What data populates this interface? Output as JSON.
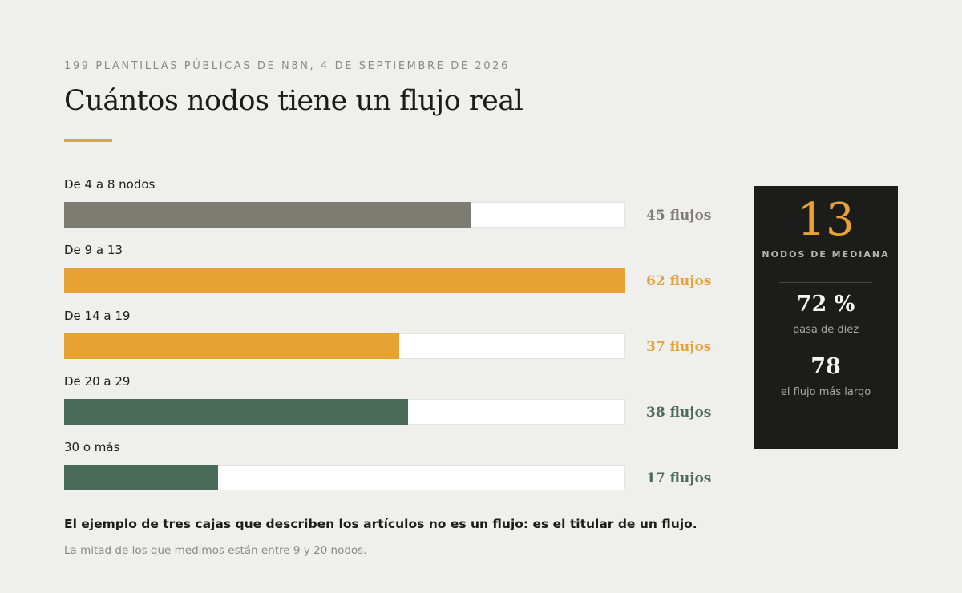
{
  "header": {
    "kicker": "199 PLANTILLAS PÚBLICAS DE N8N, 4 DE SEPTIEMBRE DE 2026",
    "title": "Cuántos nodos tiene un flujo real"
  },
  "chart_data": {
    "type": "bar",
    "orientation": "horizontal",
    "xlim": [
      0,
      62
    ],
    "categories": [
      "De 4 a 8 nodos",
      "De 9 a 13",
      "De 14 a 19",
      "De 20 a 29",
      "30 o más"
    ],
    "values": [
      45,
      62,
      37,
      38,
      17
    ],
    "value_labels": [
      "45 flujos",
      "62 flujos",
      "37 flujos",
      "38 flujos",
      "17 flujos"
    ],
    "colors": [
      "#7d7b72",
      "#e8a133",
      "#e8a133",
      "#4a6b5a",
      "#4a6b5a"
    ]
  },
  "stats_panel": {
    "median_value": "13",
    "median_label": "NODOS DE MEDIANA",
    "pct_value": "72 %",
    "pct_label": "pasa de diez",
    "longest_value": "78",
    "longest_label": "el flujo más largo"
  },
  "footer": {
    "note": "El ejemplo de tres cajas que describen los artículos no es un flujo: es el titular de un flujo.",
    "sub": "La mitad de los que medimos están entre 9 y 20 nodos."
  },
  "colors": {
    "accent": "#e8a133",
    "background": "#eff0ed",
    "panel": "#1c1c1a"
  }
}
